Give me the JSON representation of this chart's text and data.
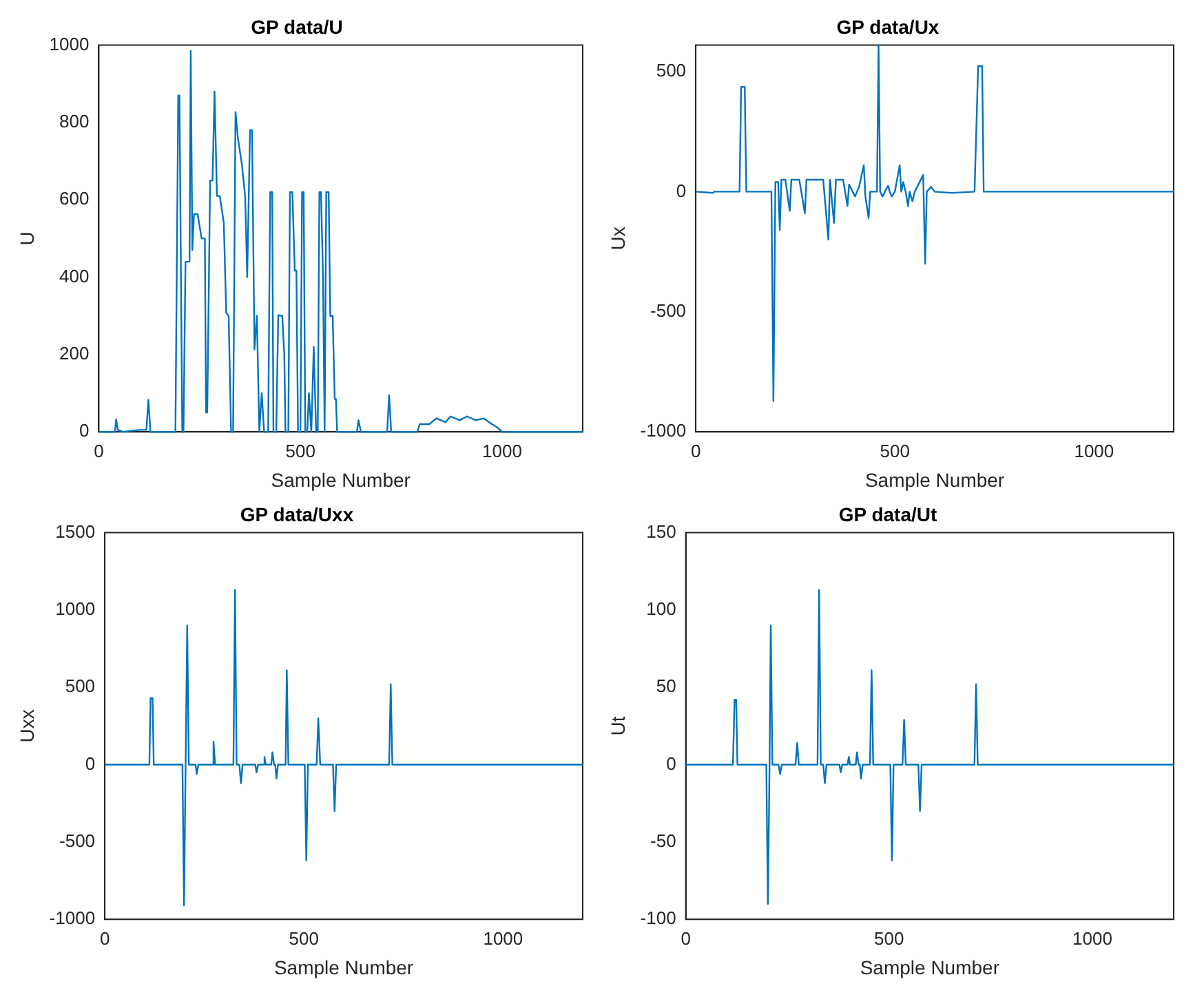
{
  "chart_data": [
    {
      "type": "line",
      "title": "GP data/U",
      "xlabel": "Sample Number",
      "ylabel": "U",
      "color": "#0072bd",
      "xlim": [
        0,
        1200
      ],
      "xticks": [
        0,
        500,
        1000
      ],
      "ylim": [
        0,
        1000
      ],
      "yticks": [
        0,
        200,
        400,
        600,
        800,
        1000
      ],
      "x": [
        0,
        40,
        43,
        47,
        60,
        100,
        118,
        123,
        128,
        190,
        197,
        200,
        207,
        210,
        215,
        225,
        228,
        232,
        236,
        245,
        255,
        263,
        266,
        269,
        276,
        282,
        287,
        293,
        300,
        310,
        316,
        322,
        328,
        333,
        339,
        345,
        355,
        363,
        368,
        375,
        380,
        386,
        392,
        398,
        404,
        410,
        420,
        425,
        430,
        433,
        440,
        445,
        455,
        460,
        463,
        470,
        474,
        480,
        486,
        490,
        494,
        500,
        504,
        508,
        512,
        517,
        521,
        527,
        533,
        539,
        543,
        547,
        551,
        556,
        560,
        564,
        570,
        574,
        580,
        585,
        588,
        591,
        640,
        644,
        650,
        715,
        720,
        725,
        790,
        796,
        820,
        837,
        860,
        872,
        895,
        913,
        935,
        954,
        975,
        990,
        1000,
        1200
      ],
      "values": [
        0,
        0,
        32,
        5,
        0,
        5,
        5,
        83,
        0,
        0,
        870,
        870,
        0,
        0,
        440,
        440,
        985,
        470,
        563,
        563,
        500,
        500,
        50,
        50,
        650,
        650,
        880,
        610,
        610,
        540,
        308,
        300,
        0,
        0,
        827,
        760,
        690,
        608,
        400,
        780,
        780,
        213,
        300,
        0,
        100,
        0,
        0,
        620,
        620,
        0,
        0,
        302,
        300,
        200,
        0,
        0,
        620,
        620,
        417,
        417,
        0,
        0,
        620,
        620,
        0,
        0,
        100,
        0,
        220,
        0,
        0,
        620,
        620,
        400,
        0,
        620,
        620,
        300,
        300,
        85,
        85,
        0,
        0,
        30,
        0,
        0,
        95,
        0,
        0,
        20,
        20,
        35,
        25,
        40,
        30,
        40,
        30,
        35,
        20,
        10,
        0,
        0
      ]
    },
    {
      "type": "line",
      "title": "GP data/Ux",
      "xlabel": "Sample Number",
      "ylabel": "Ux",
      "color": "#0072bd",
      "xlim": [
        0,
        1200
      ],
      "xticks": [
        0,
        500,
        1000
      ],
      "ylim": [
        -1000,
        610
      ],
      "yticks": [
        -1000,
        -500,
        0,
        500
      ],
      "x": [
        0,
        44,
        46,
        110,
        114,
        123,
        127,
        190,
        195,
        200,
        207,
        211,
        215,
        225,
        236,
        240,
        260,
        274,
        278,
        300,
        320,
        333,
        337,
        347,
        352,
        370,
        381,
        385,
        400,
        410,
        422,
        426,
        434,
        438,
        455,
        459,
        463,
        469,
        475,
        483,
        487,
        492,
        500,
        512,
        516,
        521,
        527,
        533,
        537,
        544,
        550,
        571,
        576,
        580,
        591,
        600,
        643,
        700,
        709,
        719,
        723,
        1200
      ],
      "values": [
        0,
        -5,
        0,
        0,
        436,
        436,
        0,
        0,
        -872,
        40,
        40,
        -159,
        50,
        50,
        -80,
        50,
        50,
        -90,
        50,
        50,
        50,
        -200,
        50,
        -130,
        50,
        50,
        -60,
        30,
        -20,
        20,
        110,
        -20,
        -110,
        0,
        0,
        610,
        0,
        -20,
        0,
        25,
        0,
        -20,
        0,
        110,
        0,
        40,
        0,
        -60,
        0,
        -40,
        0,
        70,
        -300,
        0,
        20,
        0,
        -5,
        0,
        523,
        523,
        0,
        0
      ]
    },
    {
      "type": "line",
      "title": "GP data/Uxx",
      "xlabel": "Sample Number",
      "ylabel": "Uxx",
      "color": "#0072bd",
      "xlim": [
        0,
        1200
      ],
      "xticks": [
        0,
        500,
        1000
      ],
      "ylim": [
        -1000,
        1500
      ],
      "yticks": [
        -1000,
        -500,
        0,
        500,
        1000,
        1500
      ],
      "x": [
        0,
        112,
        115,
        120,
        123,
        195,
        199,
        203,
        207,
        211,
        228,
        231,
        235,
        270,
        273,
        277,
        323,
        327,
        331,
        338,
        342,
        346,
        378,
        381,
        385,
        398,
        401,
        404,
        418,
        421,
        425,
        428,
        431,
        435,
        454,
        457,
        461,
        502,
        506,
        510,
        532,
        536,
        541,
        573,
        577,
        581,
        714,
        718,
        722,
        1200
      ],
      "values": [
        0,
        0,
        430,
        430,
        0,
        0,
        -910,
        0,
        900,
        0,
        0,
        -60,
        0,
        0,
        150,
        0,
        0,
        1130,
        0,
        0,
        -120,
        0,
        0,
        -50,
        0,
        0,
        50,
        0,
        0,
        80,
        0,
        0,
        -90,
        0,
        0,
        610,
        0,
        0,
        -620,
        0,
        0,
        300,
        0,
        0,
        -300,
        0,
        0,
        520,
        0,
        0
      ]
    },
    {
      "type": "line",
      "title": "GP data/Ut",
      "xlabel": "Sample Number",
      "ylabel": "Ut",
      "color": "#0072bd",
      "xlim": [
        0,
        1200
      ],
      "xticks": [
        0,
        500,
        1000
      ],
      "ylim": [
        -100,
        150
      ],
      "yticks": [
        -100,
        -50,
        0,
        50,
        100,
        150
      ],
      "x": [
        0,
        116,
        120,
        124,
        127,
        198,
        202,
        206,
        209,
        213,
        228,
        232,
        236,
        270,
        274,
        278,
        324,
        328,
        332,
        338,
        342,
        346,
        378,
        381,
        385,
        398,
        401,
        404,
        418,
        421,
        425,
        428,
        431,
        435,
        453,
        457,
        461,
        503,
        507,
        511,
        533,
        537,
        541,
        572,
        576,
        580,
        710,
        714,
        718,
        1200
      ],
      "values": [
        0,
        0,
        42,
        42,
        0,
        0,
        -90,
        0,
        90,
        0,
        0,
        -6,
        0,
        0,
        14,
        0,
        0,
        113,
        0,
        0,
        -12,
        0,
        0,
        -5,
        0,
        0,
        5,
        0,
        0,
        8,
        0,
        0,
        -9,
        0,
        0,
        61,
        0,
        0,
        -62,
        0,
        0,
        29,
        0,
        0,
        -30,
        0,
        0,
        52,
        0,
        0
      ]
    }
  ]
}
